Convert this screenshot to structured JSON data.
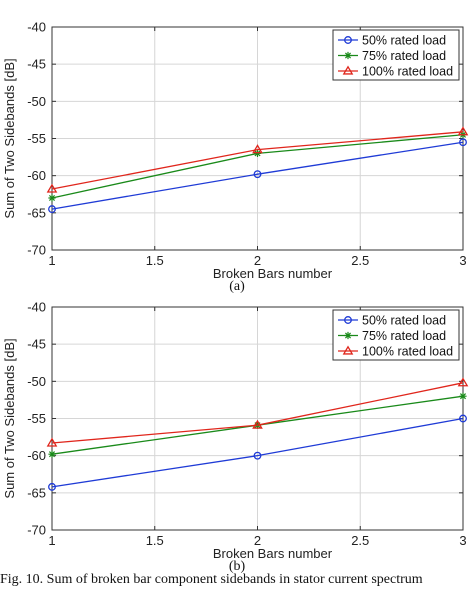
{
  "caption": "Fig. 10. Sum of broken bar component sidebands in stator current spectrum",
  "colors": {
    "s50": "#1f3bd6",
    "s75": "#1a8a1a",
    "s100": "#e0261c"
  },
  "chart_data": [
    {
      "type": "line",
      "panel_label": "(a)",
      "xlabel": "Broken Bars number",
      "ylabel": "Sum of Two Sidebands [dB]",
      "xlim": [
        1,
        3
      ],
      "ylim": [
        -70,
        -40
      ],
      "xticks": [
        1,
        1.5,
        2,
        2.5,
        3
      ],
      "xtick_labels": [
        "1",
        "1.5",
        "2",
        "2.5",
        "3"
      ],
      "yticks": [
        -40,
        -45,
        -50,
        -55,
        -60,
        -65,
        -70
      ],
      "ytick_labels": [
        "-40",
        "-45",
        "-50",
        "-55",
        "-60",
        "-65",
        "-70"
      ],
      "grid": true,
      "legend_position": "top-right",
      "x": [
        1,
        2,
        3
      ],
      "series": [
        {
          "name": "50% rated load",
          "marker": "circle",
          "color": "#1f3bd6",
          "values": [
            -64.5,
            -59.8,
            -55.5
          ]
        },
        {
          "name": "75% rated load",
          "marker": "star",
          "color": "#1a8a1a",
          "values": [
            -63.0,
            -57.0,
            -54.5
          ]
        },
        {
          "name": "100% rated load",
          "marker": "triangle",
          "color": "#e0261c",
          "values": [
            -61.8,
            -56.5,
            -54.1
          ]
        }
      ]
    },
    {
      "type": "line",
      "panel_label": "(b)",
      "xlabel": "Broken Bars number",
      "ylabel": "Sum of Two Sidebands [dB]",
      "xlim": [
        1,
        3
      ],
      "ylim": [
        -70,
        -40
      ],
      "xticks": [
        1,
        1.5,
        2,
        2.5,
        3
      ],
      "xtick_labels": [
        "1",
        "1.5",
        "2",
        "2.5",
        "3"
      ],
      "yticks": [
        -40,
        -45,
        -50,
        -55,
        -60,
        -65,
        -70
      ],
      "ytick_labels": [
        "-40",
        "-45",
        "-50",
        "-55",
        "-60",
        "-65",
        "-70"
      ],
      "grid": true,
      "legend_position": "top-right",
      "x": [
        1,
        2,
        3
      ],
      "series": [
        {
          "name": "50% rated load",
          "marker": "circle",
          "color": "#1f3bd6",
          "values": [
            -64.2,
            -60.0,
            -55.0
          ]
        },
        {
          "name": "75% rated load",
          "marker": "star",
          "color": "#1a8a1a",
          "values": [
            -59.8,
            -55.9,
            -52.0
          ]
        },
        {
          "name": "100% rated load",
          "marker": "triangle",
          "color": "#e0261c",
          "values": [
            -58.3,
            -55.9,
            -50.2
          ]
        }
      ]
    }
  ]
}
